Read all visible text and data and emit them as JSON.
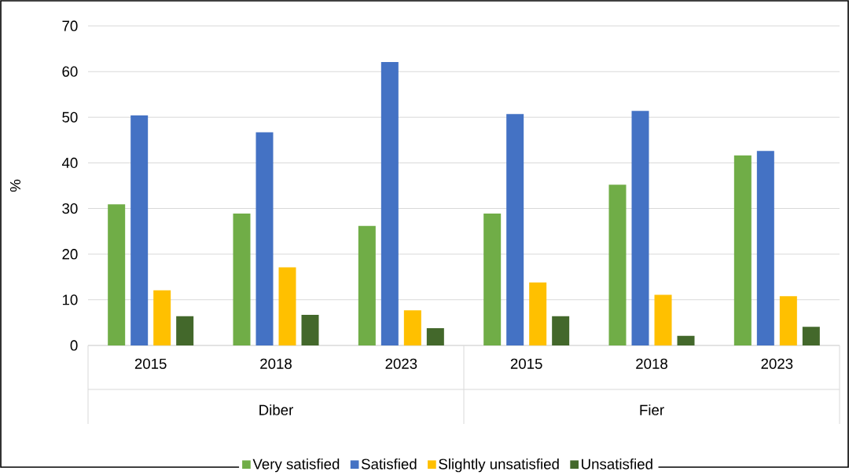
{
  "chart_data": {
    "type": "bar",
    "ylabel": "%",
    "categories": [
      "2015",
      "2018",
      "2023",
      "2015",
      "2018",
      "2023"
    ],
    "annotations": [
      "Diber",
      "Fier"
    ],
    "series": [
      {
        "name": "Very satisfied",
        "color": "#70ad47",
        "values": [
          30.9,
          28.9,
          26.2,
          28.9,
          35.2,
          41.6
        ]
      },
      {
        "name": "Satisfied",
        "color": "#4472c4",
        "values": [
          50.4,
          46.7,
          62.1,
          50.7,
          51.4,
          42.6
        ]
      },
      {
        "name": "Slightly unsatisfied",
        "color": "#ffc000",
        "values": [
          12.1,
          17.1,
          7.7,
          13.8,
          11.1,
          10.8
        ]
      },
      {
        "name": "Unsatisfied",
        "color": "#43682b",
        "values": [
          6.4,
          6.7,
          3.8,
          6.4,
          2.1,
          4.1
        ]
      }
    ],
    "ylim": [
      0,
      70
    ],
    "yticks": [
      0,
      10,
      20,
      30,
      40,
      50,
      60,
      70
    ],
    "grid": "y",
    "legend": "bottom"
  }
}
